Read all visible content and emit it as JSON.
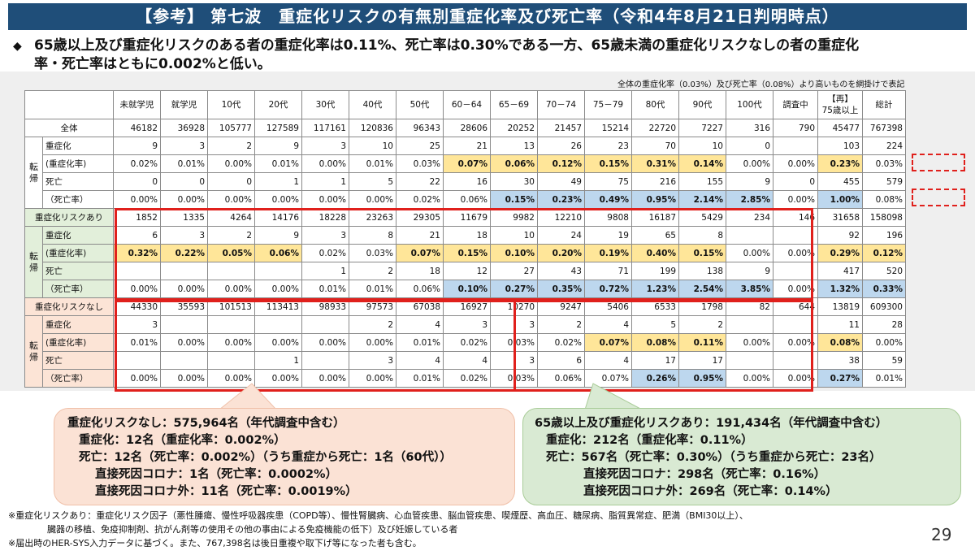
{
  "title": "【参考】 第七波　重症化リスクの有無別重症化率及び死亡率（令和4年8月21日判明時点）",
  "bullet": {
    "line1": "65歳以上及び重症化リスクのある者の重症化率は0.11%、死亡率は0.30%である一方、65歳未満の重症化リスクなしの者の重症化",
    "line2": "率・死亡率はともに0.002%と低い。"
  },
  "table_note": "全体の重症化率（0.03%）及び死亡率（0.08%）より高いものを網掛けで表記",
  "table": {
    "headers": [
      "未就学児",
      "就学児",
      "10代",
      "20代",
      "30代",
      "40代",
      "50代",
      "60－64",
      "65－69",
      "70－74",
      "75－79",
      "80代",
      "90代",
      "100代",
      "調査中",
      "【再】\n75歳以上",
      "総計"
    ],
    "groups": [
      {
        "name": "全体",
        "side_label": "転\n帰",
        "total": [
          "46182",
          "36928",
          "105777",
          "127589",
          "117161",
          "120836",
          "96343",
          "28606",
          "20252",
          "21457",
          "15214",
          "22720",
          "7227",
          "316",
          "790",
          "45477",
          "767398"
        ],
        "rows": [
          {
            "label": "重症化",
            "values": [
              "9",
              "3",
              "2",
              "9",
              "3",
              "10",
              "25",
              "21",
              "13",
              "26",
              "23",
              "70",
              "10",
              "0",
              "",
              "103",
              "224"
            ],
            "hl": [
              "",
              "",
              "",
              "",
              "",
              "",
              "",
              "",
              "",
              "",
              "",
              "",
              "",
              "",
              "",
              "",
              ""
            ]
          },
          {
            "label": "(重症化率)",
            "values": [
              "0.02%",
              "0.01%",
              "0.00%",
              "0.01%",
              "0.00%",
              "0.01%",
              "0.03%",
              "0.07%",
              "0.06%",
              "0.12%",
              "0.15%",
              "0.31%",
              "0.14%",
              "0.00%",
              "0.00%",
              "0.23%",
              "0.03%"
            ],
            "hl": [
              "",
              "",
              "",
              "",
              "",
              "",
              "",
              "y",
              "y",
              "y",
              "y",
              "y",
              "y",
              "",
              "",
              "y",
              ""
            ]
          },
          {
            "label": "死亡",
            "values": [
              "0",
              "0",
              "0",
              "1",
              "1",
              "5",
              "22",
              "16",
              "30",
              "49",
              "75",
              "216",
              "155",
              "9",
              "0",
              "455",
              "579"
            ],
            "hl": [
              "",
              "",
              "",
              "",
              "",
              "",
              "",
              "",
              "",
              "",
              "",
              "",
              "",
              "",
              "",
              "",
              ""
            ]
          },
          {
            "label": "（死亡率）",
            "values": [
              "0.00%",
              "0.00%",
              "0.00%",
              "0.00%",
              "0.00%",
              "0.00%",
              "0.02%",
              "0.06%",
              "0.15%",
              "0.23%",
              "0.49%",
              "0.95%",
              "2.14%",
              "2.85%",
              "0.00%",
              "1.00%",
              "0.08%"
            ],
            "hl": [
              "",
              "",
              "",
              "",
              "",
              "",
              "",
              "",
              "b",
              "b",
              "b",
              "b",
              "b",
              "b",
              "",
              "b",
              ""
            ]
          }
        ]
      },
      {
        "name": "重症化リスクあり",
        "side_label": "転\n帰",
        "total": [
          "1852",
          "1335",
          "4264",
          "14176",
          "18228",
          "23263",
          "29305",
          "11679",
          "9982",
          "12210",
          "9808",
          "16187",
          "5429",
          "234",
          "146",
          "31658",
          "158098"
        ],
        "rows": [
          {
            "label": "重症化",
            "values": [
              "6",
              "3",
              "2",
              "9",
              "3",
              "8",
              "21",
              "18",
              "10",
              "24",
              "19",
              "65",
              "8",
              "",
              "",
              "92",
              "196"
            ],
            "hl": [
              "",
              "",
              "",
              "",
              "",
              "",
              "",
              "",
              "",
              "",
              "",
              "",
              "",
              "",
              "",
              "",
              ""
            ]
          },
          {
            "label": "(重症化率)",
            "values": [
              "0.32%",
              "0.22%",
              "0.05%",
              "0.06%",
              "0.02%",
              "0.03%",
              "0.07%",
              "0.15%",
              "0.10%",
              "0.20%",
              "0.19%",
              "0.40%",
              "0.15%",
              "0.00%",
              "0.00%",
              "0.29%",
              "0.12%"
            ],
            "hl": [
              "y",
              "y",
              "y",
              "y",
              "",
              "",
              "y",
              "y",
              "y",
              "y",
              "y",
              "y",
              "y",
              "",
              "",
              "y",
              "y"
            ]
          },
          {
            "label": "死亡",
            "values": [
              "",
              "",
              "",
              "",
              "1",
              "2",
              "18",
              "12",
              "27",
              "43",
              "71",
              "199",
              "138",
              "9",
              "",
              "417",
              "520"
            ],
            "hl": [
              "",
              "",
              "",
              "",
              "",
              "",
              "",
              "",
              "",
              "",
              "",
              "",
              "",
              "",
              "",
              "",
              ""
            ]
          },
          {
            "label": "（死亡率）",
            "values": [
              "0.00%",
              "0.00%",
              "0.00%",
              "0.00%",
              "0.01%",
              "0.01%",
              "0.06%",
              "0.10%",
              "0.27%",
              "0.35%",
              "0.72%",
              "1.23%",
              "2.54%",
              "3.85%",
              "0.00%",
              "1.32%",
              "0.33%"
            ],
            "hl": [
              "",
              "",
              "",
              "",
              "",
              "",
              "",
              "b",
              "b",
              "b",
              "b",
              "b",
              "b",
              "b",
              "",
              "b",
              "b"
            ]
          }
        ]
      },
      {
        "name": "重症化リスクなし",
        "side_label": "転\n帰",
        "total": [
          "44330",
          "35593",
          "101513",
          "113413",
          "98933",
          "97573",
          "67038",
          "16927",
          "10270",
          "9247",
          "5406",
          "6533",
          "1798",
          "82",
          "644",
          "13819",
          "609300"
        ],
        "rows": [
          {
            "label": "重症化",
            "values": [
              "3",
              "",
              "",
              "",
              "",
              "2",
              "4",
              "3",
              "3",
              "2",
              "4",
              "5",
              "2",
              "",
              "",
              "11",
              "28"
            ],
            "hl": [
              "",
              "",
              "",
              "",
              "",
              "",
              "",
              "",
              "",
              "",
              "",
              "",
              "",
              "",
              "",
              "",
              ""
            ]
          },
          {
            "label": "(重症化率)",
            "values": [
              "0.01%",
              "0.00%",
              "0.00%",
              "0.00%",
              "0.00%",
              "0.00%",
              "0.01%",
              "0.02%",
              "0.03%",
              "0.02%",
              "0.07%",
              "0.08%",
              "0.11%",
              "0.00%",
              "0.00%",
              "0.08%",
              "0.00%"
            ],
            "hl": [
              "",
              "",
              "",
              "",
              "",
              "",
              "",
              "",
              "",
              "",
              "y",
              "y",
              "y",
              "",
              "",
              "y",
              ""
            ]
          },
          {
            "label": "死亡",
            "values": [
              "",
              "",
              "",
              "1",
              "",
              "3",
              "4",
              "4",
              "3",
              "6",
              "4",
              "17",
              "17",
              "",
              "",
              "38",
              "59"
            ],
            "hl": [
              "",
              "",
              "",
              "",
              "",
              "",
              "",
              "",
              "",
              "",
              "",
              "",
              "",
              "",
              "",
              "",
              ""
            ]
          },
          {
            "label": "（死亡率）",
            "values": [
              "0.00%",
              "0.00%",
              "0.00%",
              "0.00%",
              "0.00%",
              "0.00%",
              "0.01%",
              "0.02%",
              "0.03%",
              "0.06%",
              "0.07%",
              "0.26%",
              "0.95%",
              "0.00%",
              "0.00%",
              "0.27%",
              "0.01%"
            ],
            "hl": [
              "",
              "",
              "",
              "",
              "",
              "",
              "",
              "",
              "",
              "",
              "",
              "b",
              "b",
              "",
              "",
              "b",
              ""
            ]
          }
        ]
      }
    ]
  },
  "callout_left": {
    "l1": "重症化リスクなし：575,964名（年代調査中含む）",
    "l2": "重症化：12名（重症化率：0.002%）",
    "l3": "死亡：12名（死亡率：0.002%）（うち重症から死亡：1名（60代））",
    "l4": "直接死因コロナ：1名（死亡率：0.0002%）",
    "l5": "直接死因コロナ外：11名（死亡率：0.0019%）"
  },
  "callout_right": {
    "l1": "65歳以上及び重症化リスクあり：191,434名（年代調査中含む）",
    "l2": "重症化：212名（重症化率：0.11%）",
    "l3": "死亡：567名（死亡率：0.30%）（うち重症から死亡：23名）",
    "l4": "直接死因コロナ：298名（死亡率：0.16%）",
    "l5": "直接死因コロナ外：269名（死亡率：0.14%）"
  },
  "footnotes": {
    "f1": "※重症化リスクあり：重症化リスク因子（悪性腫瘍、慢性呼吸器疾患（COPD等）、慢性腎臓病、心血管疾患、脳血管疾患、喫煙歴、高血圧、糖尿病、脂質異常症、肥満（BMI30以上）、",
    "f2": "臓器の移植、免疫抑制剤、抗がん剤等の使用その他の事由による免疫機能の低下）及び妊娠している者",
    "f3": "※届出時のHER-SYS入力データに基づく。また、767,398名は後日重複や取下げ等になった者も含む。"
  },
  "page_number": "29",
  "colors": {
    "title_bg": "#1f4e79",
    "highlight_yellow": "#ffe699",
    "highlight_blue": "#bdd7ee",
    "box_red": "#e0201c",
    "group_green": "#e2efda",
    "group_pink": "#fce4d6",
    "callout_pink": "#fbe2d5",
    "callout_green": "#d9ead3"
  }
}
